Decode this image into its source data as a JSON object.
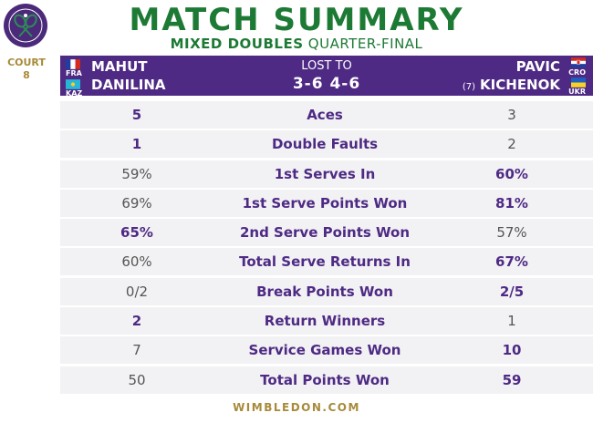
{
  "header": {
    "title": "MATCH SUMMARY",
    "subtitle_bold": "MIXED DOUBLES",
    "subtitle_rest": "QUARTER-FINAL",
    "court_label": "COURT",
    "court_number": "8",
    "footer": "WIMBLEDON.COM"
  },
  "colors": {
    "purple": "#4e2a84",
    "green": "#1d7a35",
    "gold": "#a88a3a"
  },
  "match": {
    "left": [
      {
        "name": "MAHUT",
        "country": "FRA",
        "flag": "france-flag-icon"
      },
      {
        "name": "DANILINA",
        "country": "KAZ",
        "flag": "kazakhstan-flag-icon"
      }
    ],
    "right": [
      {
        "name": "PAVIC",
        "country": "CRO",
        "flag": "croatia-flag-icon",
        "seed": ""
      },
      {
        "name": "KICHENOK",
        "country": "UKR",
        "flag": "ukraine-flag-icon",
        "seed": "(7)"
      }
    ],
    "result": "LOST TO",
    "score": "3-6 4-6"
  },
  "stats": [
    {
      "label": "Aces",
      "left": "5",
      "right": "3",
      "winner": "left"
    },
    {
      "label": "Double Faults",
      "left": "1",
      "right": "2",
      "winner": "left"
    },
    {
      "label": "1st Serves In",
      "left": "59%",
      "right": "60%",
      "winner": "right"
    },
    {
      "label": "1st Serve Points Won",
      "left": "69%",
      "right": "81%",
      "winner": "right"
    },
    {
      "label": "2nd Serve Points Won",
      "left": "65%",
      "right": "57%",
      "winner": "left"
    },
    {
      "label": "Total Serve Returns In",
      "left": "60%",
      "right": "67%",
      "winner": "right"
    },
    {
      "label": "Break Points Won",
      "left": "0/2",
      "right": "2/5",
      "winner": "right"
    },
    {
      "label": "Return Winners",
      "left": "2",
      "right": "1",
      "winner": "left"
    },
    {
      "label": "Service Games Won",
      "left": "7",
      "right": "10",
      "winner": "right"
    },
    {
      "label": "Total Points Won",
      "left": "50",
      "right": "59",
      "winner": "right"
    }
  ]
}
